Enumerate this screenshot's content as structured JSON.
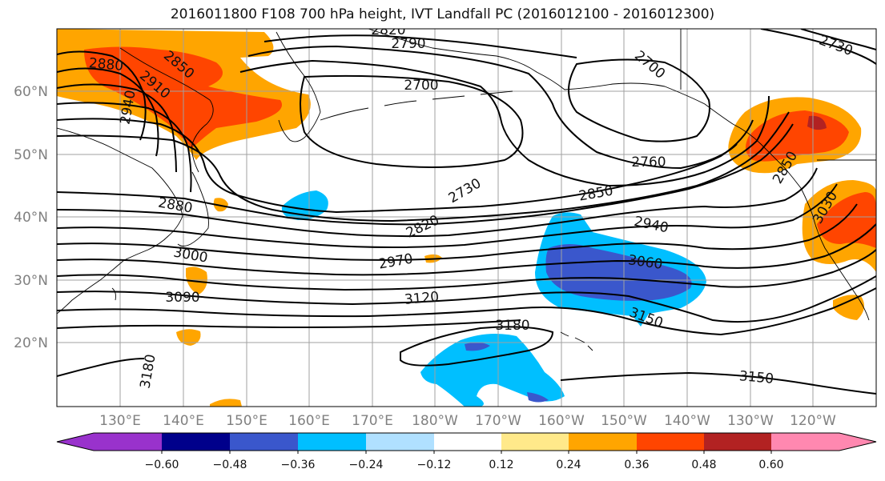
{
  "title": "2016011800 F108 700 hPa height, IVT Landfall PC (2016012100 - 2016012300)",
  "lat_labels": [
    "60°N",
    "50°N",
    "40°N",
    "30°N",
    "20°N"
  ],
  "lon_labels": [
    "130°E",
    "140°E",
    "150°E",
    "160°E",
    "170°E",
    "180°W",
    "170°W",
    "160°W",
    "150°W",
    "140°W",
    "130°W",
    "120°W"
  ],
  "contour_labels": [
    "2820",
    "2790",
    "2700",
    "2700",
    "2730",
    "2880",
    "2850",
    "2910",
    "2940",
    "2760",
    "2730",
    "2850",
    "2940",
    "2850",
    "2820",
    "2880",
    "3000",
    "2970",
    "3060",
    "3030",
    "3090",
    "3120",
    "3150",
    "3180",
    "3180",
    "3150"
  ],
  "colorbar": {
    "ticks": [
      "−0.60",
      "−0.48",
      "−0.36",
      "−0.24",
      "−0.12",
      "0.12",
      "0.24",
      "0.36",
      "0.48",
      "0.60"
    ],
    "colors": [
      "#9932cc",
      "#00008b",
      "#3a57cc",
      "#00bfff",
      "#b0e0ff",
      "#ffffff",
      "#ffe98a",
      "#ffa500",
      "#ff4500",
      "#b22222",
      "#ff88b0"
    ]
  },
  "colors": {
    "grid": "#a0a0a0",
    "contour": "#000000",
    "axis_label": "#808080"
  }
}
